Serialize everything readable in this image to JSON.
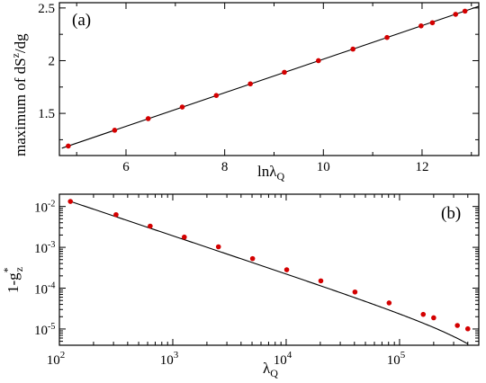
{
  "chart_data": [
    {
      "type": "scatter",
      "panel_label": "(a)",
      "ylabel": "maximum of dS",
      "ylabel_sup": "z",
      "ylabel_tail": "/dg",
      "xlabel": "lnλ",
      "xlabel_sub": "Q",
      "xlim": [
        4.65,
        13.15
      ],
      "ylim": [
        1.1,
        2.55
      ],
      "xticks": [
        6,
        8,
        10,
        12
      ],
      "xtick_labels": [
        "6",
        "8",
        "10",
        "12"
      ],
      "yticks": [
        1.5,
        2,
        2.5
      ],
      "ytick_labels": [
        "1.5",
        "2",
        "2.5"
      ],
      "series": [
        {
          "kind": "points",
          "color": "#d40000",
          "x": [
            4.83,
            5.77,
            6.45,
            7.14,
            7.83,
            8.52,
            9.21,
            9.9,
            10.6,
            11.29,
            11.98,
            12.21,
            12.68,
            12.87
          ],
          "y": [
            1.19,
            1.34,
            1.45,
            1.56,
            1.67,
            1.78,
            1.89,
            2.0,
            2.11,
            2.22,
            2.33,
            2.36,
            2.44,
            2.47
          ]
        },
        {
          "kind": "line",
          "color": "#000000",
          "x": [
            4.7,
            13.15
          ],
          "y": [
            1.17,
            2.516
          ]
        }
      ]
    },
    {
      "type": "scatter",
      "panel_label": "(b)",
      "ylabel": "1-g",
      "ylabel_sup": "*",
      "ylabel_sub": "z",
      "xlabel": "λ",
      "xlabel_sub": "Q",
      "xscale": "log",
      "yscale": "log",
      "xlim": [
        100,
        500000
      ],
      "ylim": [
        4e-06,
        0.02
      ],
      "xticks": [
        100,
        1000,
        10000,
        100000
      ],
      "xtick_base": [
        "10",
        "10",
        "10",
        "10"
      ],
      "xtick_exp": [
        "2",
        "3",
        "4",
        "5"
      ],
      "yticks": [
        1e-05,
        0.0001,
        0.001,
        0.01
      ],
      "ytick_base": [
        "10",
        "10",
        "10",
        "10"
      ],
      "ytick_exp": [
        "-5",
        "-4",
        "-3",
        "-2"
      ],
      "series": [
        {
          "kind": "points",
          "color": "#d40000",
          "x": [
            125,
            316,
            632,
            1264,
            2528,
            5056,
            10112,
            20224,
            40448,
            80896,
            161792,
            200000,
            323584,
            400000
          ],
          "y": [
            0.0133,
            0.0063,
            0.0033,
            0.00178,
            0.00103,
            0.00053,
            0.000282,
            0.000151,
            8.05e-05,
            4.35e-05,
            2.28e-05,
            1.88e-05,
            1.22e-05,
            1.01e-05
          ]
        },
        {
          "kind": "line",
          "color": "#000000",
          "model": "a*x^-b - c",
          "params": {
            "a": 1.2,
            "b": 0.932,
            "c": 2.9e-06
          },
          "x_range": [
            125,
            400000
          ]
        }
      ]
    }
  ]
}
